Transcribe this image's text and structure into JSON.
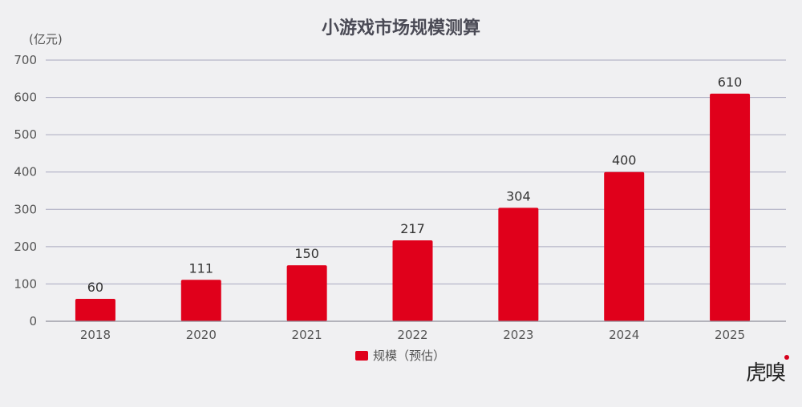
{
  "chart_data": {
    "type": "bar",
    "title": "小游戏市场规模测算",
    "ylabel": "(亿元)",
    "xlabel": "",
    "categories": [
      "2018",
      "2020",
      "2021",
      "2022",
      "2023",
      "2024",
      "2025"
    ],
    "series": [
      {
        "name": "规模（预估）",
        "values": [
          60,
          111,
          150,
          217,
          304,
          400,
          610
        ],
        "color": "#e0001b"
      }
    ],
    "ylim": [
      0,
      700
    ],
    "yticks": [
      0,
      100,
      200,
      300,
      400,
      500,
      600,
      700
    ],
    "grid": true,
    "legend_position": "bottom-center",
    "data_labels": true
  },
  "watermark": {
    "text": "虎嗅",
    "accent_color": "#d6001c"
  }
}
